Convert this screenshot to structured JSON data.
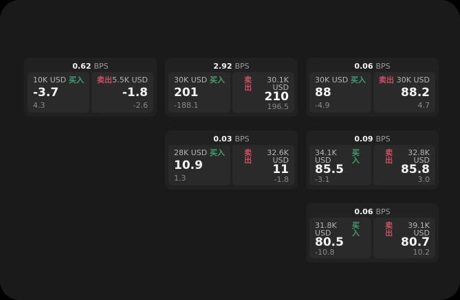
{
  "labels": {
    "bps": "BPS",
    "buy": "买入",
    "sell": "卖出"
  },
  "colors": {
    "page_background": "#1a1a1b",
    "card_background": "#212122",
    "panel_background": "#2a2a2b",
    "buy_green": "#3da06b",
    "sell_red": "#cc4f63",
    "primary_text": "#f5f5f5",
    "muted_text": "#8a8a8b"
  },
  "cards": [
    {
      "bps": "0.62",
      "buy": {
        "amount": "10K USD",
        "value": "-3.7",
        "sub": "4.3"
      },
      "sell": {
        "amount": "5.5K USD",
        "value": "-1.8",
        "sub": "-2.6"
      }
    },
    {
      "bps": "2.92",
      "buy": {
        "amount": "30K USD",
        "value": "201",
        "sub": "-188.1"
      },
      "sell": {
        "amount": "30.1K USD",
        "value": "210",
        "sub": "196.5"
      }
    },
    {
      "bps": "0.06",
      "buy": {
        "amount": "30K USD",
        "value": "88",
        "sub": "-4.9"
      },
      "sell": {
        "amount": "30K USD",
        "value": "88.2",
        "sub": "4.7"
      }
    },
    {
      "bps": "0.03",
      "buy": {
        "amount": "28K USD",
        "value": "10.9",
        "sub": "1.3"
      },
      "sell": {
        "amount": "32.6K USD",
        "value": "11",
        "sub": "-1.8"
      }
    },
    {
      "bps": "0.09",
      "buy": {
        "amount": "34.1K USD",
        "value": "85.5",
        "sub": "-3.1"
      },
      "sell": {
        "amount": "32.8K USD",
        "value": "85.8",
        "sub": "3.0"
      }
    },
    {
      "bps": "0.06",
      "buy": {
        "amount": "31.8K USD",
        "value": "80.5",
        "sub": "-10.8"
      },
      "sell": {
        "amount": "39.1K USD",
        "value": "80.7",
        "sub": "10.2"
      }
    }
  ]
}
